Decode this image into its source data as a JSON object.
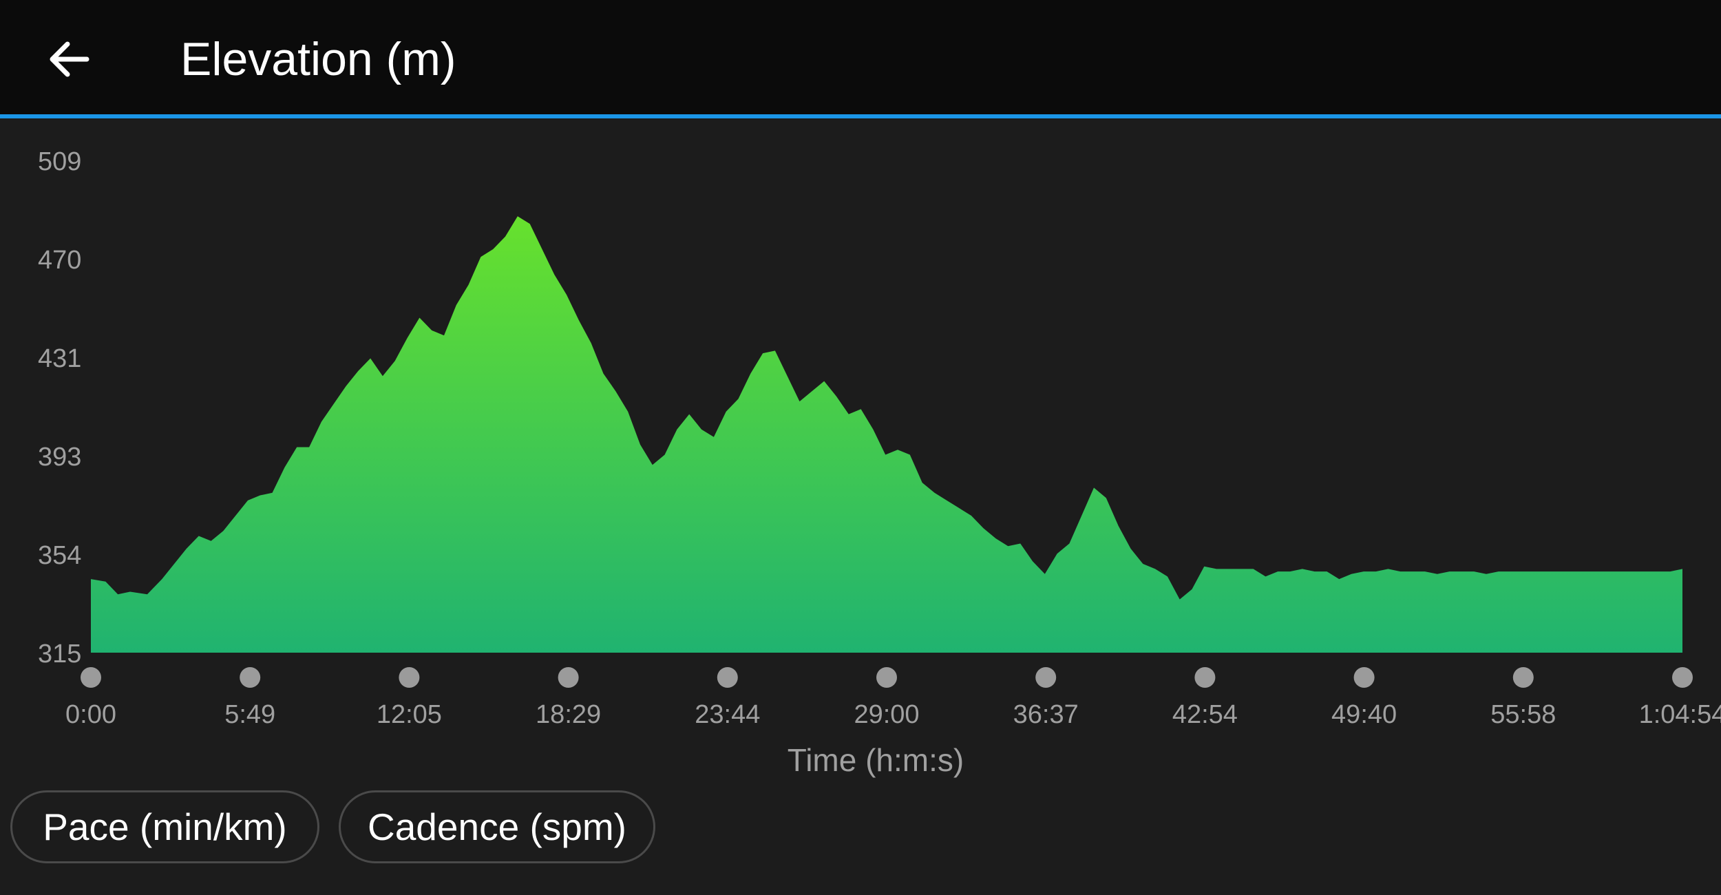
{
  "header": {
    "title": "Elevation (m)",
    "back_icon": "arrow-left-icon"
  },
  "chart_data": {
    "type": "area",
    "ylabel": "",
    "xlabel": "Time (h:m:s)",
    "ylim": [
      315,
      509
    ],
    "y_ticks": [
      "509",
      "470",
      "431",
      "393",
      "354",
      "315"
    ],
    "x_ticks": [
      "0:00",
      "5:49",
      "12:05",
      "18:29",
      "23:44",
      "29:00",
      "36:37",
      "42:54",
      "49:40",
      "55:58",
      "1:04:54"
    ],
    "x_range_minutes": [
      0,
      64.9
    ],
    "series": [
      {
        "x": [
          0,
          0.6,
          1.1,
          1.6,
          2.3,
          2.9,
          3.4,
          3.9,
          4.4,
          4.9,
          5.4,
          5.9,
          6.4,
          6.9,
          7.4,
          7.9,
          8.4,
          8.9,
          9.4,
          9.9,
          10.4,
          10.9,
          11.4,
          11.9,
          12.4,
          12.9,
          13.4,
          13.9,
          14.4,
          14.9,
          15.4,
          15.9,
          16.4,
          16.9,
          17.4,
          17.9,
          18.4,
          18.9,
          19.4,
          19.9,
          20.4,
          20.9,
          21.4,
          21.9,
          22.4,
          22.9,
          23.4,
          23.9,
          24.4,
          24.9,
          25.4,
          25.9,
          26.4,
          26.9,
          27.4,
          27.9,
          28.4,
          28.9,
          29.4,
          29.9,
          30.4,
          30.9,
          31.4,
          31.9,
          32.4,
          32.9,
          33.4,
          33.9,
          34.4,
          34.9,
          35.4,
          35.9,
          36.4,
          36.9,
          37.4,
          37.9,
          38.4,
          38.9,
          39.4,
          39.9,
          40.4,
          40.9,
          41.4,
          41.9,
          42.4,
          42.9,
          43.4,
          43.9,
          44.4,
          44.9,
          45.4,
          45.9,
          46.4,
          46.9,
          47.4,
          47.9,
          48.4,
          48.9,
          49.4,
          49.9,
          50.4,
          50.9,
          51.4,
          51.9,
          52.4,
          52.9,
          53.4,
          53.9,
          54.4,
          54.9,
          55.4,
          55.9,
          56.4,
          56.9,
          57.4,
          57.9,
          58.4,
          58.9,
          59.4,
          59.9,
          60.4,
          60.9,
          61.4,
          61.9,
          62.4,
          62.9,
          63.4,
          63.9,
          64.4,
          64.9
        ],
        "values": [
          344,
          343,
          338,
          339,
          338,
          344,
          350,
          356,
          361,
          359,
          363,
          369,
          375,
          377,
          378,
          388,
          396,
          396,
          406,
          413,
          420,
          426,
          431,
          424,
          430,
          439,
          447,
          442,
          440,
          452,
          460,
          471,
          474,
          479,
          487,
          484,
          474,
          464,
          456,
          446,
          437,
          425,
          418,
          410,
          397,
          389,
          393,
          403,
          409,
          403,
          400,
          410,
          415,
          425,
          433,
          434,
          424,
          414,
          418,
          422,
          416,
          409,
          411,
          403,
          393,
          395,
          393,
          382,
          378,
          375,
          372,
          369,
          364,
          360,
          357,
          358,
          351,
          346,
          354,
          358,
          369,
          380,
          376,
          365,
          356,
          350,
          348,
          345,
          336,
          340,
          349,
          348,
          348,
          348,
          348,
          345,
          347,
          347,
          348,
          347,
          347,
          344,
          346,
          347,
          347,
          348,
          347,
          347,
          347,
          346,
          347,
          347,
          347,
          346,
          347,
          347,
          347,
          347,
          347,
          347,
          347,
          347,
          347,
          347,
          347,
          347,
          347,
          347,
          347,
          348
        ]
      }
    ],
    "colors": {
      "area_top": "#67e12d",
      "area_bottom": "#20b370",
      "tick_text": "#a0a0a0",
      "tick_dot": "#9b9b9b"
    }
  },
  "chips": [
    {
      "label": "Pace (min/km)"
    },
    {
      "label": "Cadence (spm)"
    }
  ]
}
